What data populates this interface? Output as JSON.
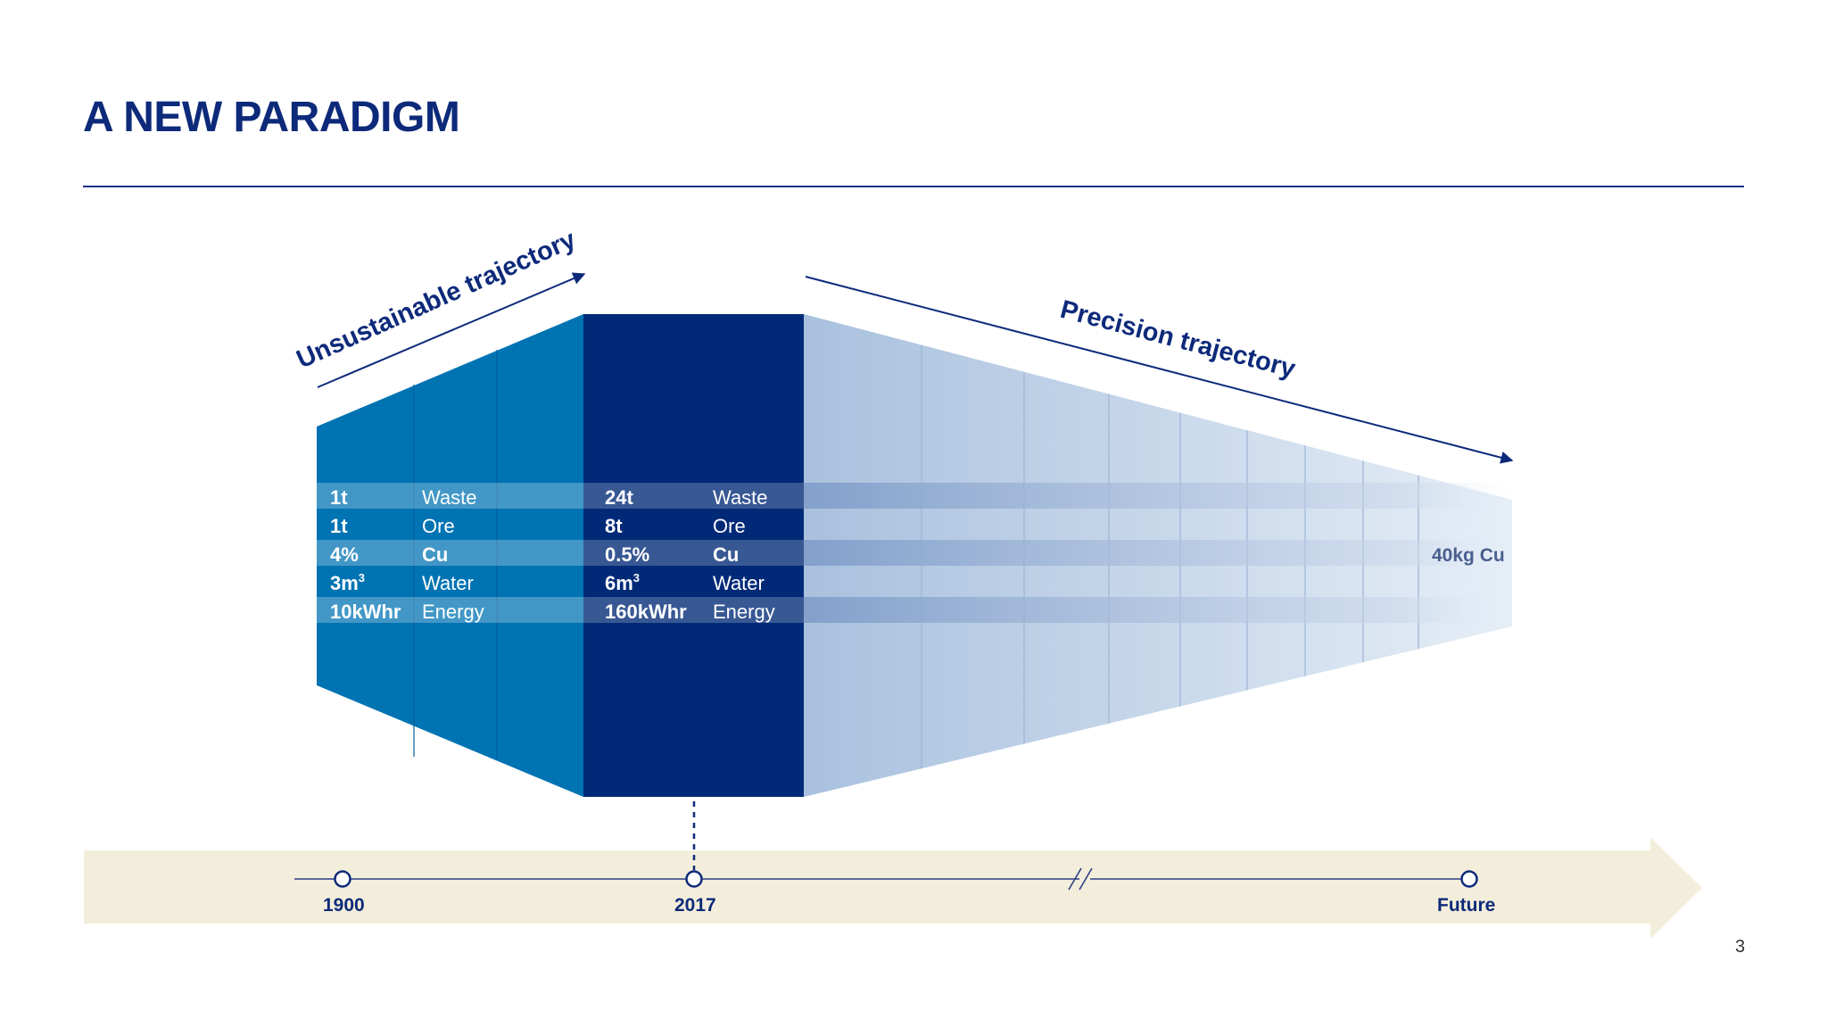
{
  "slide": {
    "title": "A NEW PARADIGM",
    "page_number": "3"
  },
  "trajectories": {
    "unsustainable": "Unsustainable trajectory",
    "precision": "Precision trajectory"
  },
  "col_1900": {
    "rows": [
      {
        "value": "1t",
        "label": "Waste",
        "bold_label": false
      },
      {
        "value": "1t",
        "label": "Ore",
        "bold_label": false
      },
      {
        "value": "4%",
        "label": "Cu",
        "bold_label": true
      },
      {
        "value": "3m",
        "value_sup": "3",
        "label": "Water",
        "bold_label": false
      },
      {
        "value": "10kWhr",
        "label": "Energy",
        "bold_label": false
      }
    ]
  },
  "col_2017": {
    "rows": [
      {
        "value": "24t",
        "label": "Waste",
        "bold_label": false
      },
      {
        "value": "8t",
        "label": "Ore",
        "bold_label": false
      },
      {
        "value": "0.5%",
        "label": "Cu",
        "bold_label": true
      },
      {
        "value": "6m",
        "value_sup": "3",
        "label": "Water",
        "bold_label": false
      },
      {
        "value": "160kWhr",
        "label": "Energy",
        "bold_label": false
      }
    ]
  },
  "future": {
    "value": "40kg Cu"
  },
  "timeline": {
    "points": [
      "1900",
      "2017",
      "Future"
    ]
  },
  "colors": {
    "past": "#0073b3",
    "present": "#002a77",
    "future_start": "#a7bfdd",
    "future_end": "#e3ebf5",
    "text_dark": "#0d2a7a",
    "timeline_band": "#f3eedb"
  }
}
